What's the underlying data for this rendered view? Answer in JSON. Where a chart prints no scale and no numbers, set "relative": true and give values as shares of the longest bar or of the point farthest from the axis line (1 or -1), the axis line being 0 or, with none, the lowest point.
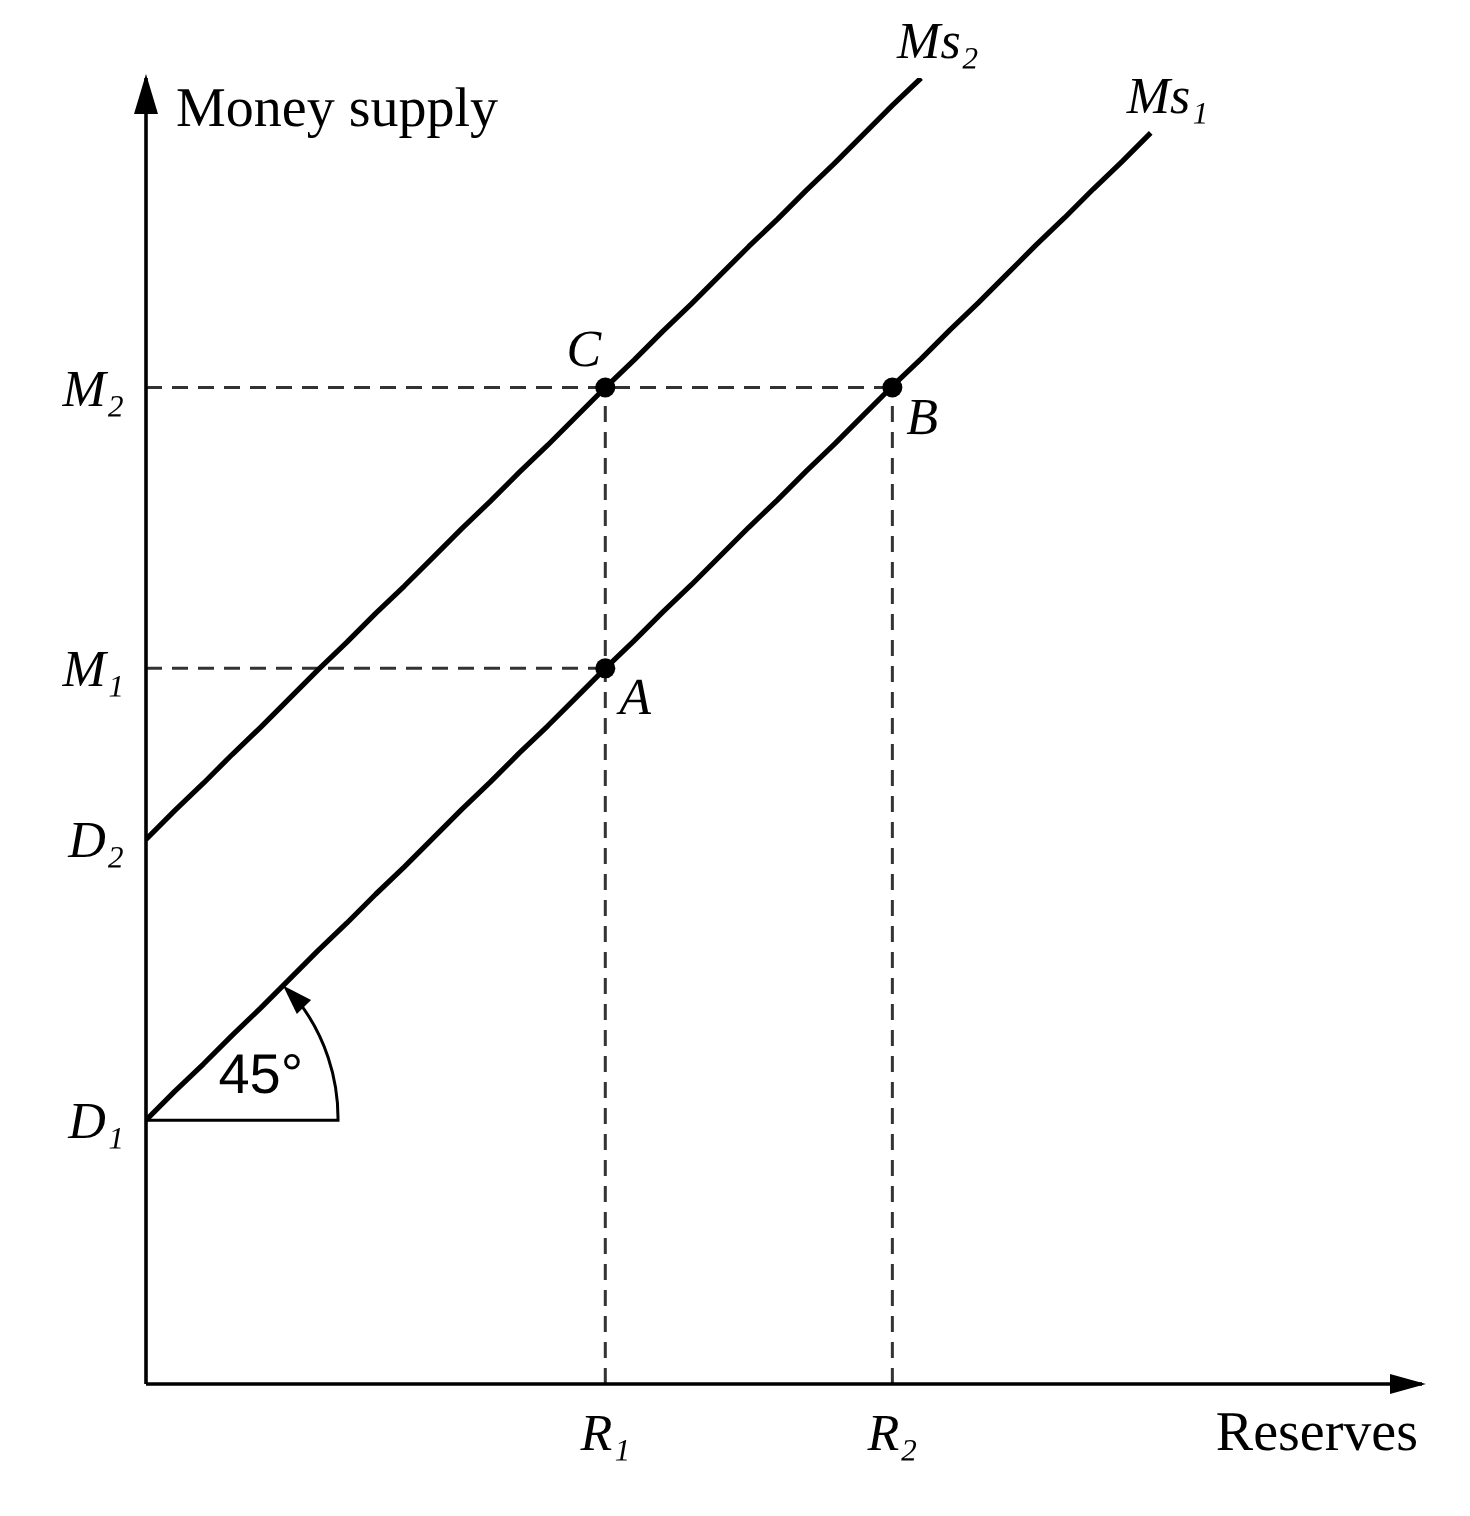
{
  "chart_data": {
    "type": "line",
    "relative": true,
    "xlabel": "Reserves",
    "ylabel": "Money supply",
    "categories": [
      null,
      null,
      null,
      null,
      null,
      null,
      null,
      null,
      null,
      null,
      null,
      null,
      null,
      null,
      null,
      null,
      "R₁",
      null,
      null,
      null,
      null,
      null,
      null,
      null,
      null,
      null,
      "R₂",
      null,
      null,
      null,
      null,
      null,
      null,
      null,
      null,
      null
    ],
    "series": [
      {
        "type": "line",
        "line_style": "dashed",
        "color": "#333333",
        "values": [
          0.763,
          0.763,
          0.763,
          0.763,
          0.763,
          0.763,
          0.763,
          0.763,
          0.763,
          0.763,
          0.763,
          0.763,
          0.763,
          0.763,
          0.763,
          0.763,
          0.763,
          0.763,
          0.763,
          0.763,
          0.763,
          0.763,
          0.763,
          0.763,
          0.763,
          0.763,
          0.763,
          null,
          null,
          null,
          null,
          null,
          null,
          null,
          null,
          null
        ]
      },
      {
        "type": "line",
        "line_style": "dashed",
        "color": "#333333",
        "values": [
          0.548,
          0.548,
          0.548,
          0.548,
          0.548,
          0.548,
          0.548,
          0.548,
          0.548,
          0.548,
          0.548,
          0.548,
          0.548,
          0.548,
          0.548,
          0.548,
          0.548,
          null,
          null,
          null,
          null,
          null,
          null,
          null,
          null,
          null,
          null,
          null,
          null,
          null,
          null,
          null,
          null,
          null,
          null,
          null
        ]
      },
      {
        "type": "line",
        "line_style": "dashed",
        "color": "#333333",
        "x": [
          "R₁",
          "R₁"
        ],
        "values": [
          0,
          0.763
        ]
      },
      {
        "type": "line",
        "line_style": "dashed",
        "color": "#333333",
        "x": [
          "R₂",
          "R₂"
        ],
        "values": [
          0,
          0.763
        ]
      },
      {
        "name": "Ms₁",
        "color": "#000000",
        "values": [
          0.202,
          0.224,
          0.245,
          0.267,
          0.288,
          0.31,
          0.332,
          0.353,
          0.375,
          0.396,
          0.418,
          0.44,
          0.461,
          0.483,
          0.504,
          0.526,
          0.548,
          0.569,
          0.591,
          0.612,
          0.634,
          0.656,
          0.677,
          0.699,
          0.72,
          0.742,
          0.764,
          0.785,
          0.807,
          0.828,
          0.85,
          0.872,
          0.893,
          0.915,
          0.936,
          0.958
        ]
      },
      {
        "name": "Ms₂",
        "color": "#000000",
        "values": [
          0.417,
          0.439,
          0.46,
          0.482,
          0.503,
          0.525,
          0.547,
          0.568,
          0.59,
          0.611,
          0.633,
          0.655,
          0.676,
          0.698,
          0.719,
          0.741,
          0.763,
          0.784,
          0.806,
          0.827,
          0.849,
          0.871,
          0.892,
          0.914,
          0.935,
          0.957,
          0.979,
          1,
          null,
          null,
          null,
          null,
          null,
          null,
          null,
          null
        ]
      },
      {
        "type": "scatter",
        "marker": "circle",
        "color": "#000000",
        "x": [
          "R₁",
          "R₂",
          "R₁"
        ],
        "values": [
          0.548,
          0.763,
          0.763
        ]
      }
    ],
    "annotations": [
      "M₂",
      "M₁",
      "D₂",
      "D₁",
      {
        "text": "A",
        "x": "R₁",
        "y": 0.548
      },
      {
        "text": "B",
        "x": "R₂",
        "y": 0.763
      },
      {
        "text": "C",
        "x": "R₁",
        "y": 0.763
      },
      "45°"
    ]
  }
}
